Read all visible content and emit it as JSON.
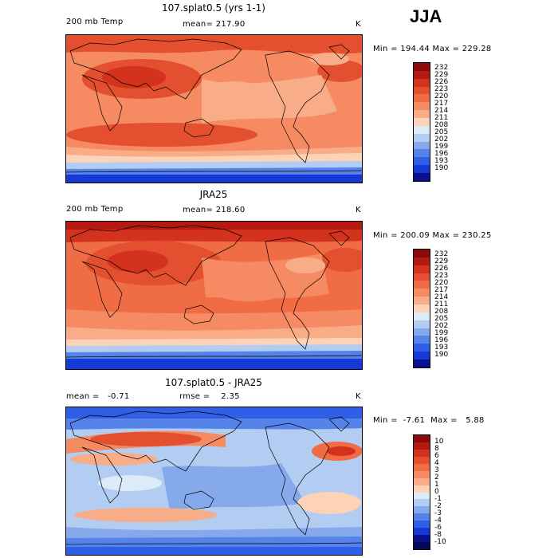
{
  "season": "JJA",
  "panels": [
    {
      "title": "107.splat0.5 (yrs 1-1)",
      "left_label": "200 mb Temp",
      "center_label": "mean= 217.90",
      "units": "K",
      "minmax": "Min = 194.44  Max = 229.28",
      "levels": [
        "232",
        "229",
        "226",
        "223",
        "220",
        "217",
        "214",
        "211",
        "208",
        "205",
        "202",
        "199",
        "196",
        "193",
        "190"
      ],
      "map_type": "model"
    },
    {
      "title": "JRA25",
      "left_label": "200 mb Temp",
      "center_label": "mean= 218.60",
      "units": "K",
      "minmax": "Min = 200.09  Max = 230.25",
      "levels": [
        "232",
        "229",
        "226",
        "223",
        "220",
        "217",
        "214",
        "211",
        "208",
        "205",
        "202",
        "199",
        "196",
        "193",
        "190"
      ],
      "map_type": "obs"
    },
    {
      "title": "107.splat0.5 - JRA25",
      "left_label": "mean =   -0.71",
      "center_label": "rmse =    2.35",
      "units": "K",
      "minmax": "Min =  -7.61  Max =   5.88",
      "levels": [
        "10",
        "8",
        "6",
        "4",
        "3",
        "2",
        "1",
        "0",
        "-1",
        "-2",
        "-3",
        "-4",
        "-6",
        "-8",
        "-10"
      ],
      "map_type": "diff"
    }
  ],
  "colors": {
    "temp_scale": [
      "#8c0a0a",
      "#b51a12",
      "#d2321e",
      "#e4502f",
      "#f06c45",
      "#f68a62",
      "#f9ac88",
      "#fcd3b7",
      "#ddeaf8",
      "#b3ccf1",
      "#86a9ec",
      "#5583ea",
      "#2e5fe6",
      "#1638d6",
      "#0a0f8f"
    ],
    "diff_scale": [
      "#8c0a0a",
      "#b51a12",
      "#d2321e",
      "#e4502f",
      "#f06c45",
      "#f68a62",
      "#f9ac88",
      "#fcd3b7",
      "#ddeaf8",
      "#b3ccf1",
      "#86a9ec",
      "#5583ea",
      "#2e5fe6",
      "#1638d6",
      "#0a0f8f",
      "#05085a"
    ]
  }
}
